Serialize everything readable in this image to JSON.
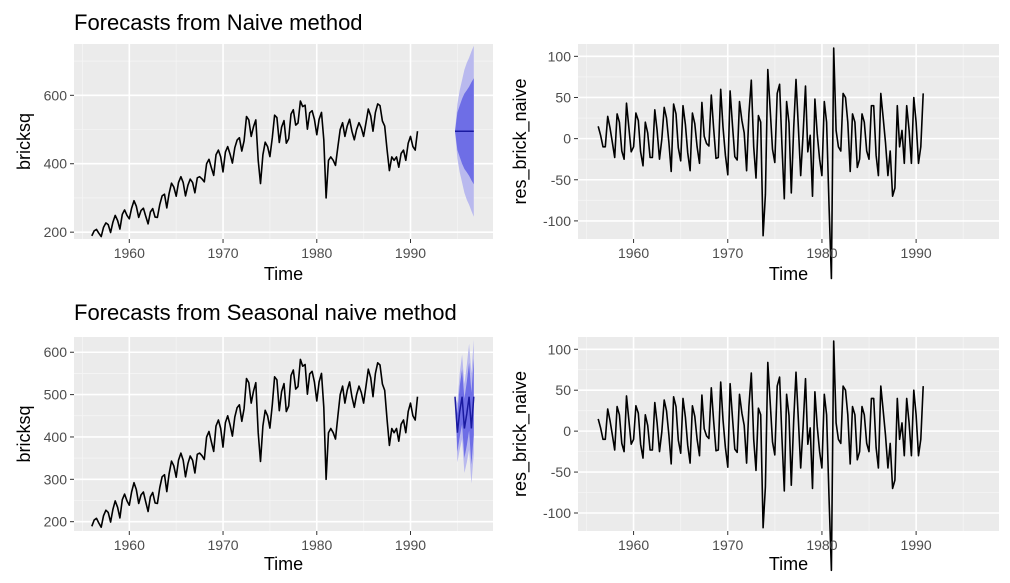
{
  "chart_data": [
    {
      "type": "line",
      "title": "Forecasts from Naive method",
      "xlabel": "Time",
      "ylabel": "bricksq",
      "xlim": [
        1954.1,
        1998.8
      ],
      "ylim": [
        180,
        750
      ],
      "xticks": [
        1960,
        1970,
        1980,
        1990
      ],
      "xtick_labels": [
        "1960",
        "1970",
        "1980",
        "1990"
      ],
      "yticks": [
        200,
        400,
        600
      ],
      "ytick_labels": [
        "200",
        "400",
        "600"
      ],
      "series": [
        {
          "name": "bricksq",
          "x_start": 1956.0,
          "x_step": 0.25,
          "values": [
            189,
            204,
            208,
            197,
            187,
            214,
            227,
            222,
            199,
            229,
            249,
            234,
            209,
            252,
            265,
            249,
            239,
            270,
            292,
            276,
            243,
            263,
            270,
            247,
            224,
            259,
            269,
            244,
            243,
            281,
            306,
            311,
            271,
            313,
            343,
            332,
            305,
            345,
            362,
            345,
            306,
            337,
            355,
            345,
            315,
            359,
            362,
            356,
            347,
            400,
            413,
            389,
            366,
            426,
            440,
            420,
            376,
            434,
            450,
            428,
            402,
            447,
            469,
            476,
            437,
            467,
            538,
            528,
            480,
            508,
            528,
            410,
            342,
            426,
            463,
            450,
            421,
            476,
            542,
            535,
            462,
            507,
            526,
            460,
            473,
            545,
            558,
            513,
            519,
            583,
            567,
            571,
            501,
            549,
            555,
            530,
            485,
            530,
            550,
            470,
            300,
            410,
            420,
            410,
            395,
            450,
            500,
            520,
            480,
            510,
            530,
            495,
            470,
            500,
            520,
            505,
            480,
            520,
            560,
            540,
            495,
            550,
            575,
            570,
            525,
            510,
            440,
            380,
            420,
            410,
            420,
            390,
            430,
            440,
            410,
            460,
            480,
            450,
            440,
            495
          ]
        }
      ],
      "forecast": {
        "x_start": 1994.75,
        "x_end": 1996.75,
        "mean": 495,
        "lo80": [
          495,
          440,
          420,
          400,
          385,
          375,
          365,
          352,
          340
        ],
        "hi80": [
          495,
          550,
          570,
          590,
          605,
          615,
          625,
          638,
          650
        ],
        "lo95": [
          495,
          415,
          375,
          345,
          315,
          295,
          280,
          262,
          245
        ],
        "hi95": [
          495,
          575,
          615,
          645,
          675,
          695,
          710,
          728,
          745
        ]
      },
      "colors": {
        "line": "#000000",
        "band80": "#6e6ee6",
        "band95": "#b9b9ee",
        "mean": "#1a1aa0"
      }
    },
    {
      "type": "line",
      "title": "",
      "xlabel": "Time",
      "ylabel": "res_brick_naive",
      "xlim": [
        1954.1,
        1998.8
      ],
      "ylim": [
        -122,
        115
      ],
      "xticks": [
        1960,
        1970,
        1980,
        1990
      ],
      "xtick_labels": [
        "1960",
        "1970",
        "1980",
        "1990"
      ],
      "yticks": [
        -100,
        -50,
        0,
        50,
        100
      ],
      "ytick_labels": [
        "-100",
        "-50",
        "0",
        "50",
        "100"
      ],
      "series": [
        {
          "name": "res_brick_naive",
          "x_start": 1956.25,
          "x_step": 0.25,
          "values": [
            15,
            4,
            -10,
            -10,
            27,
            13,
            -5,
            -23,
            30,
            20,
            -15,
            -25,
            43,
            13,
            -16,
            -10,
            31,
            22,
            -16,
            -33,
            20,
            7,
            -23,
            -23,
            35,
            10,
            -25,
            -1,
            38,
            25,
            -5,
            -40,
            42,
            30,
            -11,
            -27,
            40,
            17,
            -17,
            -39,
            31,
            18,
            -10,
            -30,
            44,
            3,
            -6,
            -9,
            53,
            13,
            -24,
            -23,
            60,
            14,
            -20,
            -44,
            58,
            16,
            -22,
            -26,
            45,
            22,
            7,
            -39,
            30,
            71,
            -10,
            -48,
            28,
            20,
            -118,
            -68,
            84,
            37,
            -13,
            -29,
            55,
            66,
            -7,
            -73,
            45,
            19,
            -66,
            13,
            72,
            13,
            -45,
            6,
            64,
            -16,
            4,
            -70,
            48,
            6,
            -25,
            -45,
            45,
            20,
            -80,
            -170,
            110,
            10,
            -10,
            -15,
            55,
            50,
            20,
            -40,
            30,
            20,
            -35,
            -25,
            30,
            20,
            -15,
            -25,
            40,
            40,
            -20,
            -45,
            55,
            25,
            -5,
            -45,
            -15,
            -70,
            -60,
            40,
            -10,
            10,
            -30,
            40,
            10,
            -30,
            50,
            20,
            -30,
            -10,
            55
          ]
        }
      ],
      "colors": {
        "line": "#000000"
      }
    },
    {
      "type": "line",
      "title": "Forecasts from Seasonal naive method",
      "xlabel": "Time",
      "ylabel": "bricksq",
      "xlim": [
        1954.1,
        1998.8
      ],
      "ylim": [
        178,
        636
      ],
      "xticks": [
        1960,
        1970,
        1980,
        1990
      ],
      "xtick_labels": [
        "1960",
        "1970",
        "1980",
        "1990"
      ],
      "yticks": [
        200,
        300,
        400,
        500,
        600
      ],
      "ytick_labels": [
        "200",
        "300",
        "400",
        "500",
        "600"
      ],
      "series": [
        {
          "name": "bricksq",
          "x_start": 1956.0,
          "x_step": 0.25,
          "values": [
            189,
            204,
            208,
            197,
            187,
            214,
            227,
            222,
            199,
            229,
            249,
            234,
            209,
            252,
            265,
            249,
            239,
            270,
            292,
            276,
            243,
            263,
            270,
            247,
            224,
            259,
            269,
            244,
            243,
            281,
            306,
            311,
            271,
            313,
            343,
            332,
            305,
            345,
            362,
            345,
            306,
            337,
            355,
            345,
            315,
            359,
            362,
            356,
            347,
            400,
            413,
            389,
            366,
            426,
            440,
            420,
            376,
            434,
            450,
            428,
            402,
            447,
            469,
            476,
            437,
            467,
            538,
            528,
            480,
            508,
            528,
            410,
            342,
            426,
            463,
            450,
            421,
            476,
            542,
            535,
            462,
            507,
            526,
            460,
            473,
            545,
            558,
            513,
            519,
            583,
            567,
            571,
            501,
            549,
            555,
            530,
            485,
            530,
            550,
            470,
            300,
            410,
            420,
            410,
            395,
            450,
            500,
            520,
            480,
            510,
            530,
            495,
            470,
            500,
            520,
            505,
            480,
            520,
            560,
            540,
            495,
            550,
            575,
            570,
            525,
            510,
            440,
            380,
            420,
            410,
            420,
            390,
            430,
            440,
            410,
            460,
            480,
            450,
            440,
            495
          ]
        }
      ],
      "forecast": {
        "x_start": 1994.75,
        "x_step": 0.25,
        "mean": [
          495,
          410,
          460,
          495,
          420,
          455,
          495,
          420,
          495
        ],
        "lo80": [
          495,
          365,
          400,
          430,
          350,
          380,
          415,
          335,
          405
        ],
        "hi80": [
          495,
          455,
          520,
          560,
          490,
          530,
          575,
          505,
          585
        ],
        "lo95": [
          495,
          340,
          370,
          395,
          315,
          340,
          370,
          290,
          360
        ],
        "hi95": [
          495,
          480,
          550,
          595,
          525,
          570,
          620,
          550,
          630
        ]
      },
      "colors": {
        "line": "#000000",
        "band80": "#6e6ee6",
        "band95": "#b9b9ee",
        "mean": "#1a1aa0"
      }
    },
    {
      "type": "line",
      "title": "",
      "xlabel": "Time",
      "ylabel": "res_brick_naive",
      "xlim": [
        1954.1,
        1998.8
      ],
      "ylim": [
        -122,
        115
      ],
      "xticks": [
        1960,
        1970,
        1980,
        1990
      ],
      "xtick_labels": [
        "1960",
        "1970",
        "1980",
        "1990"
      ],
      "yticks": [
        -100,
        -50,
        0,
        50,
        100
      ],
      "ytick_labels": [
        "-100",
        "-50",
        "0",
        "50",
        "100"
      ],
      "series": [
        {
          "name": "res_brick_naive",
          "x_start": 1956.25,
          "x_step": 0.25,
          "values": [
            15,
            4,
            -10,
            -10,
            27,
            13,
            -5,
            -23,
            30,
            20,
            -15,
            -25,
            43,
            13,
            -16,
            -10,
            31,
            22,
            -16,
            -33,
            20,
            7,
            -23,
            -23,
            35,
            10,
            -25,
            -1,
            38,
            25,
            -5,
            -40,
            42,
            30,
            -11,
            -27,
            40,
            17,
            -17,
            -39,
            31,
            18,
            -10,
            -30,
            44,
            3,
            -6,
            -9,
            53,
            13,
            -24,
            -23,
            60,
            14,
            -20,
            -44,
            58,
            16,
            -22,
            -26,
            45,
            22,
            7,
            -39,
            30,
            71,
            -10,
            -48,
            28,
            20,
            -118,
            -68,
            84,
            37,
            -13,
            -29,
            55,
            66,
            -7,
            -73,
            45,
            19,
            -66,
            13,
            72,
            13,
            -45,
            6,
            64,
            -16,
            4,
            -70,
            48,
            6,
            -25,
            -45,
            45,
            20,
            -80,
            -170,
            110,
            10,
            -10,
            -15,
            55,
            50,
            20,
            -40,
            30,
            20,
            -35,
            -25,
            30,
            20,
            -15,
            -25,
            40,
            40,
            -20,
            -45,
            55,
            25,
            -5,
            -45,
            -15,
            -70,
            -60,
            40,
            -10,
            10,
            -30,
            40,
            10,
            -30,
            50,
            20,
            -30,
            -10,
            55
          ]
        }
      ],
      "colors": {
        "line": "#000000"
      }
    }
  ]
}
